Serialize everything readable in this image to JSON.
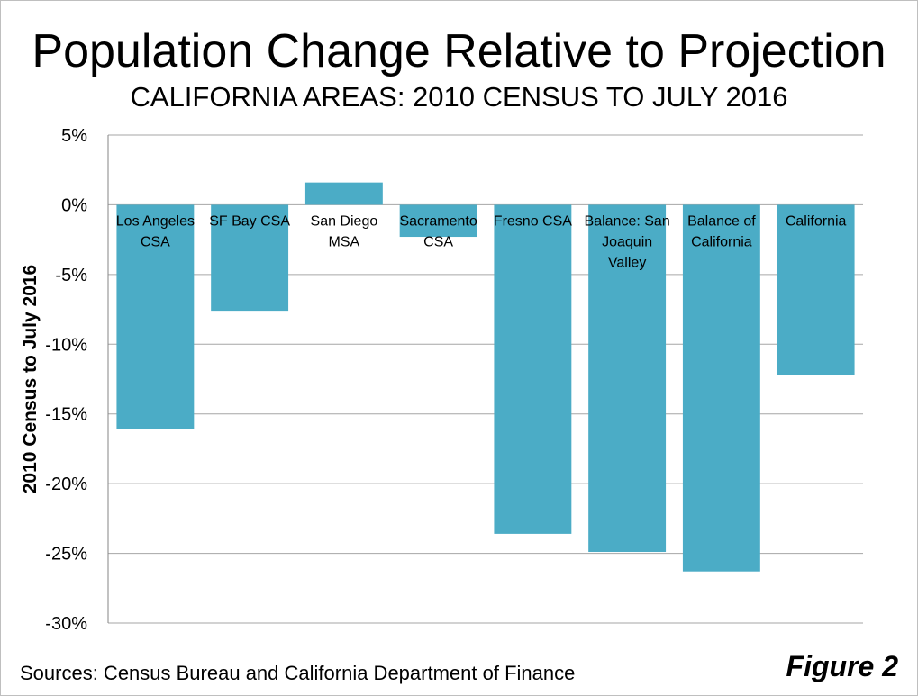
{
  "chart_data": {
    "type": "bar",
    "title": "Population Change Relative to Projection",
    "subtitle": "CALIFORNIA AREAS: 2010 CENSUS TO JULY 2016",
    "xlabel": "",
    "ylabel": "2010 Census to July 2016",
    "ylim": [
      -30,
      5
    ],
    "yticks": [
      5,
      0,
      -5,
      -10,
      -15,
      -20,
      -25,
      -30
    ],
    "ytick_labels": [
      "5%",
      "0%",
      "-5%",
      "-10%",
      "-15%",
      "-20%",
      "-25%",
      "-30%"
    ],
    "grid": true,
    "categories": [
      [
        "Los Angeles",
        "CSA"
      ],
      [
        "SF Bay CSA"
      ],
      [
        "San Diego",
        "MSA"
      ],
      [
        "Sacramento",
        "CSA"
      ],
      [
        "Fresno CSA"
      ],
      [
        "Balance: San",
        "Joaquin",
        "Valley"
      ],
      [
        "Balance of",
        "California"
      ],
      [
        "California"
      ]
    ],
    "values": [
      -16.1,
      -7.6,
      1.6,
      -2.3,
      -23.6,
      -24.9,
      -26.3,
      -12.2
    ],
    "bar_color": "#4bacc6",
    "grid_color": "#a6a6a6",
    "axis_color": "#868686"
  },
  "footer": {
    "source": "Sources:  Census Bureau and California  Department of Finance",
    "figure_label": "Figure 2"
  }
}
